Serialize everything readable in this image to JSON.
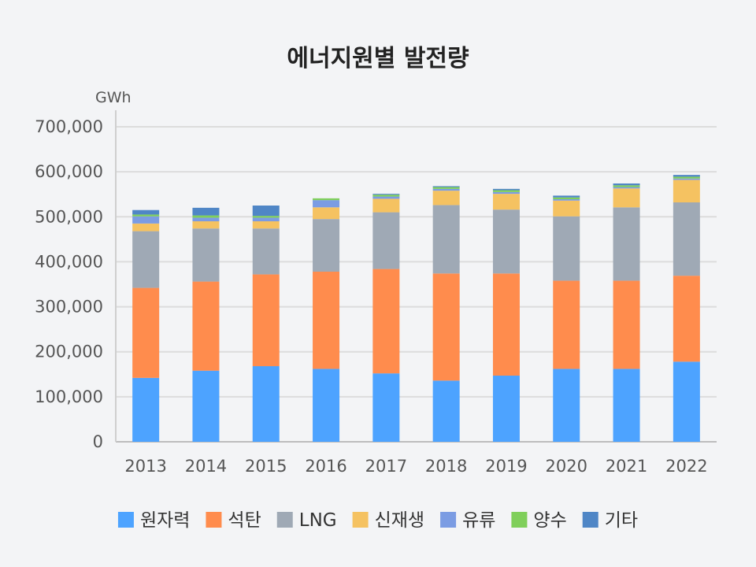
{
  "chart_data": {
    "type": "bar",
    "stacked": true,
    "title": "에너지원별 발전량",
    "ylabel": "GWh",
    "xlabel": "",
    "ylim": [
      0,
      700000
    ],
    "yticks": [
      0,
      100000,
      200000,
      300000,
      400000,
      500000,
      600000,
      700000
    ],
    "ytick_labels": [
      "0",
      "100,000",
      "200,000",
      "300,000",
      "400,000",
      "500,000",
      "600,000",
      "700,000"
    ],
    "grid": true,
    "legend_position": "bottom",
    "categories": [
      "2013",
      "2014",
      "2015",
      "2016",
      "2017",
      "2018",
      "2019",
      "2020",
      "2021",
      "2022"
    ],
    "series": [
      {
        "name": "원자력",
        "color": "#4da3ff",
        "values": [
          142000,
          158000,
          168000,
          162000,
          152000,
          136000,
          147000,
          162000,
          162000,
          178000
        ]
      },
      {
        "name": "석탄",
        "color": "#ff8c4d",
        "values": [
          200000,
          198000,
          204000,
          216000,
          232000,
          238000,
          227000,
          196000,
          196000,
          191000
        ]
      },
      {
        "name": "LNG",
        "color": "#9fa9b5",
        "values": [
          126000,
          118000,
          102000,
          117000,
          126000,
          152000,
          142000,
          143000,
          163000,
          163000
        ]
      },
      {
        "name": "신재생",
        "color": "#f5c261",
        "values": [
          17000,
          16000,
          16000,
          26000,
          30000,
          32000,
          35000,
          35000,
          42000,
          50000
        ]
      },
      {
        "name": "유류",
        "color": "#7b9ce3",
        "values": [
          16000,
          8000,
          8000,
          16000,
          5000,
          4000,
          4000,
          3000,
          3000,
          3000
        ]
      },
      {
        "name": "양수",
        "color": "#7fcf5a",
        "values": [
          4000,
          5000,
          4000,
          4000,
          4000,
          4000,
          4000,
          4000,
          4000,
          4000
        ]
      },
      {
        "name": "기타",
        "color": "#4f86c6",
        "values": [
          10000,
          17000,
          23000,
          0,
          2000,
          2000,
          3000,
          4000,
          4000,
          4000
        ]
      }
    ]
  }
}
